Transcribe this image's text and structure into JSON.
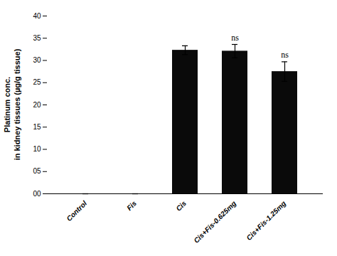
{
  "chart_data": {
    "type": "bar",
    "categories": [
      "Control",
      "Fis",
      "Cis",
      "Cis+Fis-0.625mg",
      "Cis+Fis-1.25mg"
    ],
    "values": [
      0.0,
      0.0,
      32.3,
      32.1,
      27.5
    ],
    "errors": [
      0.0,
      0.0,
      1.0,
      1.5,
      2.2
    ],
    "color": "#0a0a0a",
    "ylabel": "Platinum conc.\nin kidney tissues (µg/g tissue)",
    "ylim": [
      0,
      40
    ],
    "yticks": [
      {
        "value": 0,
        "label": "00"
      },
      {
        "value": 5,
        "label": "05"
      },
      10,
      15,
      20,
      25,
      30,
      35,
      40
    ],
    "grid": false,
    "annotations": [
      {
        "text": "ns",
        "category": "Cis+Fis-0.625mg"
      },
      {
        "text": "ns",
        "category": "Cis+Fis-1.25mg"
      }
    ]
  }
}
